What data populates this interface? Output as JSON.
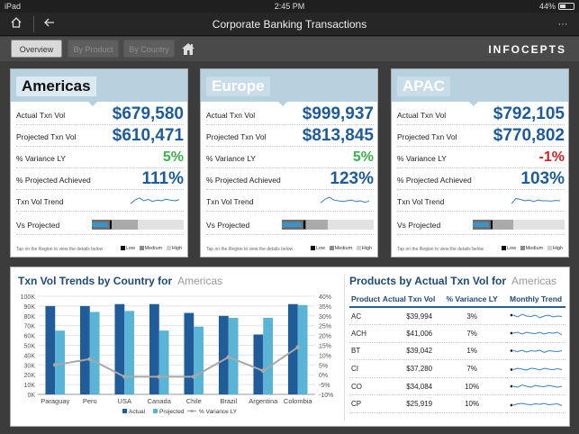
{
  "status": {
    "device": "iPad",
    "time": "2:45 PM",
    "battery_text": "44%",
    "battery_fraction": 0.44
  },
  "nav": {
    "title": "Corporate Banking Transactions",
    "more": "···"
  },
  "tabs": [
    {
      "label": "Overview",
      "active": true
    },
    {
      "label": "By Product",
      "active": false
    },
    {
      "label": "By Country",
      "active": false
    }
  ],
  "brand": "INFOCEPTS",
  "row_labels": {
    "actual": "Actual Txn Vol",
    "projected": "Projected Txn Vol",
    "variance": "% Variance LY",
    "achieved": "% Projected Achieved",
    "trend": "Txn Vol Trend",
    "vs_projected": "Vs Projected"
  },
  "card_footer": "Tap on the Region to view the details below",
  "bullet_legend": [
    "Low",
    "Medium",
    "High"
  ],
  "colors": {
    "accent": "#1e5c99",
    "positive": "#3bb34a",
    "negative": "#d62020",
    "actual_bar": "#1f5c99",
    "projected_bar": "#5ab4d6",
    "variance_line": "#a8a8a8"
  },
  "regions": [
    {
      "name": "Americas",
      "actual": "$679,580",
      "projected": "$610,471",
      "variance": "5%",
      "variance_sign": "pos",
      "achieved": "111%",
      "trend": [
        0.3,
        0.55,
        0.7,
        0.5,
        0.6,
        0.45,
        0.55,
        0.5,
        0.6,
        0.55,
        0.5,
        0.58
      ],
      "bullet": {
        "low": 0.22,
        "medium": 0.5,
        "actual": 0.18,
        "target": 0.2
      }
    },
    {
      "name": "Europe",
      "actual": "$999,937",
      "projected": "$813,845",
      "variance": "5%",
      "variance_sign": "pos",
      "achieved": "123%",
      "trend": [
        0.35,
        0.6,
        0.75,
        0.55,
        0.5,
        0.45,
        0.5,
        0.55,
        0.45,
        0.5,
        0.4,
        0.48
      ],
      "bullet": {
        "low": 0.26,
        "medium": 0.5,
        "actual": 0.22,
        "target": 0.24
      }
    },
    {
      "name": "APAC",
      "actual": "$792,105",
      "projected": "$770,802",
      "variance": "-1%",
      "variance_sign": "neg",
      "achieved": "103%",
      "trend": [
        0.3,
        0.65,
        0.6,
        0.5,
        0.55,
        0.45,
        0.55,
        0.5,
        0.5,
        0.48,
        0.52,
        0.5
      ],
      "bullet": {
        "low": 0.22,
        "medium": 0.44,
        "actual": 0.18,
        "target": 0.2
      }
    }
  ],
  "trends_panel": {
    "title": "Txn Vol Trends by Country for",
    "region": "Americas"
  },
  "chart_data": {
    "type": "bar",
    "title": "Txn Vol Trends by Country for",
    "categories": [
      "Paraguay",
      "Peru",
      "USA",
      "Canada",
      "Chile",
      "Brazil",
      "Argentina",
      "Colombia"
    ],
    "series": [
      {
        "name": "Actual",
        "type": "bar",
        "axis": "left",
        "values": [
          90000,
          90000,
          92000,
          92000,
          83000,
          80000,
          61000,
          92000
        ]
      },
      {
        "name": "Projected",
        "type": "bar",
        "axis": "left",
        "values": [
          65000,
          84000,
          85000,
          65000,
          69000,
          78000,
          78000,
          91000
        ]
      },
      {
        "name": "% Variance LY",
        "type": "line",
        "axis": "right",
        "values": [
          5,
          8,
          -1,
          -1,
          -1,
          9,
          2,
          14
        ]
      }
    ],
    "y_left": {
      "ticks": [
        "0K",
        "10K",
        "20K",
        "30K",
        "40K",
        "50K",
        "60K",
        "70K",
        "80K",
        "90K",
        "100K"
      ],
      "ylim": [
        0,
        100000
      ]
    },
    "y_right": {
      "ticks": [
        "-10%",
        "-5%",
        "0%",
        "5%",
        "10%",
        "15%",
        "20%",
        "25%",
        "30%",
        "35%",
        "40%"
      ],
      "ylim": [
        -10,
        40
      ]
    },
    "grid": true,
    "legend": "bottom"
  },
  "products_panel": {
    "title": "Products by Actual Txn Vol for",
    "region": "Americas",
    "columns": [
      "Product",
      "Actual Txn Vol",
      "% Variance LY",
      "Monthly Trend"
    ],
    "rows": [
      {
        "product": "AC",
        "actual": "$39,994",
        "variance": "3%",
        "trend": [
          0.6,
          0.4,
          0.7,
          0.5,
          0.45,
          0.6,
          0.3,
          0.5,
          0.6,
          0.4,
          0.5,
          0.45
        ]
      },
      {
        "product": "ACH",
        "actual": "$41,006",
        "variance": "7%",
        "trend": [
          0.5,
          0.6,
          0.4,
          0.6,
          0.5,
          0.45,
          0.6,
          0.4,
          0.55,
          0.5,
          0.6,
          0.3
        ]
      },
      {
        "product": "BT",
        "actual": "$39,042",
        "variance": "1%",
        "trend": [
          0.55,
          0.45,
          0.6,
          0.4,
          0.55,
          0.5,
          0.6,
          0.35,
          0.55,
          0.5,
          0.45,
          0.55
        ]
      },
      {
        "product": "CI",
        "actual": "$37,280",
        "variance": "7%",
        "trend": [
          0.45,
          0.6,
          0.5,
          0.4,
          0.6,
          0.55,
          0.4,
          0.6,
          0.5,
          0.45,
          0.55,
          0.45
        ]
      },
      {
        "product": "CO",
        "actual": "$34,084",
        "variance": "10%",
        "trend": [
          0.5,
          0.4,
          0.65,
          0.5,
          0.4,
          0.6,
          0.5,
          0.45,
          0.6,
          0.5,
          0.4,
          0.5
        ]
      },
      {
        "product": "CP",
        "actual": "$25,919",
        "variance": "10%",
        "trend": [
          0.4,
          0.55,
          0.6,
          0.5,
          0.45,
          0.55,
          0.5,
          0.6,
          0.45,
          0.5,
          0.55,
          0.35
        ]
      }
    ]
  }
}
